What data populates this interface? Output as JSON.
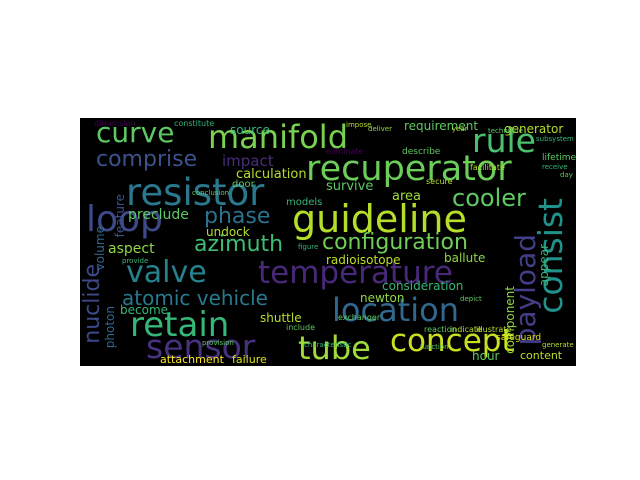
{
  "wordcloud": {
    "background": "#000000",
    "words": [
      {
        "text": "curve",
        "color": "#5ec962"
      },
      {
        "text": "manifold",
        "color": "#7ad151"
      },
      {
        "text": "rule",
        "color": "#4ac16d"
      },
      {
        "text": "recuperator",
        "color": "#6ccd5a"
      },
      {
        "text": "comprise",
        "color": "#3b528b"
      },
      {
        "text": "resistor",
        "color": "#2a788e"
      },
      {
        "text": "cooler",
        "color": "#5ec962"
      },
      {
        "text": "guideline",
        "color": "#b5de2b"
      },
      {
        "text": "consist",
        "color": "#21918c"
      },
      {
        "text": "loop",
        "color": "#3e4989"
      },
      {
        "text": "phase",
        "color": "#2c728e"
      },
      {
        "text": "azimuth",
        "color": "#3fbc73"
      },
      {
        "text": "configuration",
        "color": "#6ece58"
      },
      {
        "text": "valve",
        "color": "#26828e"
      },
      {
        "text": "temperature",
        "color": "#482878"
      },
      {
        "text": "payload",
        "color": "#433e85"
      },
      {
        "text": "atomic vehicle",
        "color": "#2a788e"
      },
      {
        "text": "retain",
        "color": "#35b779"
      },
      {
        "text": "location",
        "color": "#31688e"
      },
      {
        "text": "nuclide",
        "color": "#3e4989"
      },
      {
        "text": "sensor",
        "color": "#46327e"
      },
      {
        "text": "tube",
        "color": "#a0da39"
      },
      {
        "text": "concept",
        "color": "#c8e020"
      },
      {
        "text": "impact",
        "color": "#472d7b"
      },
      {
        "text": "preclude",
        "color": "#5ec962"
      },
      {
        "text": "aspect",
        "color": "#90d743"
      },
      {
        "text": "undock",
        "color": "#b5de2b"
      },
      {
        "text": "survive",
        "color": "#5ec962"
      },
      {
        "text": "area",
        "color": "#9fda3a"
      },
      {
        "text": "models",
        "color": "#35b779"
      },
      {
        "text": "calculation",
        "color": "#b5de2b"
      },
      {
        "text": "source",
        "color": "#35b779"
      },
      {
        "text": "requirement",
        "color": "#5ec962"
      },
      {
        "text": "generator",
        "color": "#b5de2b"
      },
      {
        "text": "radioisotope",
        "color": "#bddf26"
      },
      {
        "text": "ballute",
        "color": "#90d743"
      },
      {
        "text": "appear",
        "color": "#35b779"
      },
      {
        "text": "consideration",
        "color": "#35b779"
      },
      {
        "text": "newton",
        "color": "#90d743"
      },
      {
        "text": "component",
        "color": "#90d743"
      },
      {
        "text": "shuttle",
        "color": "#b5de2b"
      },
      {
        "text": "become",
        "color": "#35b779"
      },
      {
        "text": "photon",
        "color": "#31688e"
      },
      {
        "text": "volume",
        "color": "#31688e"
      },
      {
        "text": "feature",
        "color": "#3b528b"
      },
      {
        "text": "hour",
        "color": "#5ec962"
      },
      {
        "text": "content",
        "color": "#b5de2b"
      },
      {
        "text": "attachment",
        "color": "#fde725"
      },
      {
        "text": "failure",
        "color": "#dde318"
      },
      {
        "text": "door",
        "color": "#5ec962"
      },
      {
        "text": "lifetime",
        "color": "#5ec962"
      },
      {
        "text": "safeguard",
        "color": "#dde318"
      },
      {
        "text": "describe",
        "color": "#5ec962"
      },
      {
        "text": "eliminate",
        "color": "#440154"
      },
      {
        "text": "exchanger",
        "color": "#5ec962"
      },
      {
        "text": "reaction",
        "color": "#5ec962"
      },
      {
        "text": "indicate",
        "color": "#b5de2b"
      },
      {
        "text": "illustrate",
        "color": "#b5de2b"
      },
      {
        "text": "include",
        "color": "#5ec962"
      },
      {
        "text": "facilitate",
        "color": "#b5de2b"
      },
      {
        "text": "secure",
        "color": "#b5de2b"
      },
      {
        "text": "impose",
        "color": "#b5de2b"
      },
      {
        "text": "dimension",
        "color": "#440154"
      },
      {
        "text": "constitute",
        "color": "#35b779"
      },
      {
        "text": "provide",
        "color": "#35b779"
      },
      {
        "text": "generate",
        "color": "#b5de2b"
      },
      {
        "text": "depict",
        "color": "#5ec962"
      },
      {
        "text": "function",
        "color": "#5ec962"
      },
      {
        "text": "figure",
        "color": "#35b779"
      },
      {
        "text": "receive",
        "color": "#35b779"
      },
      {
        "text": "subsystem",
        "color": "#35b779"
      },
      {
        "text": "characteristic",
        "color": "#35b779"
      },
      {
        "text": "day",
        "color": "#5ec962"
      },
      {
        "text": "technique",
        "color": "#5ec962"
      },
      {
        "text": "conclusion",
        "color": "#5ec962"
      },
      {
        "text": "provision",
        "color": "#5ec962"
      },
      {
        "text": "deliver",
        "color": "#90d743"
      },
      {
        "text": "year",
        "color": "#b5de2b"
      }
    ]
  }
}
